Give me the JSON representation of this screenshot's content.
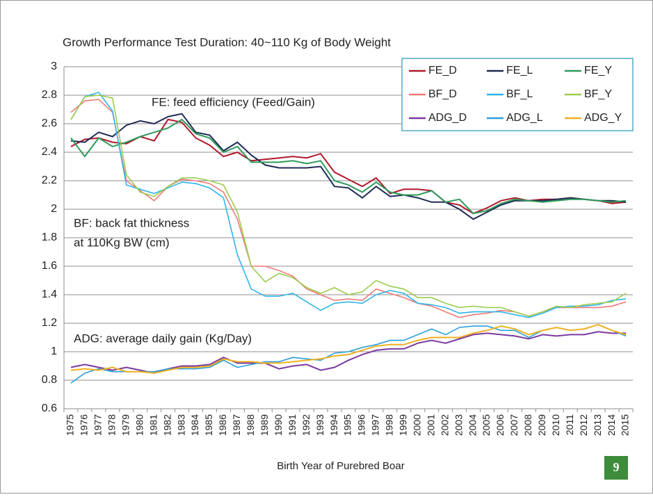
{
  "chart_data": {
    "type": "line",
    "title": "Growth Performance Test Duration: 40~110 Kg of Body Weight",
    "x_label": "Birth Year of Purebred Boar",
    "annotations": [
      "FE: feed efficiency (Feed/Gain)",
      "BF: back fat thickness",
      "at 110Kg BW (cm)",
      "ADG: average daily gain (Kg/Day)"
    ],
    "categories": [
      "1975",
      "1976",
      "1977",
      "1978",
      "1979",
      "1980",
      "1981",
      "1982",
      "1983",
      "1984",
      "1985",
      "1986",
      "1987",
      "1988",
      "1989",
      "1990",
      "1991",
      "1992",
      "1993",
      "1994",
      "1995",
      "1996",
      "1997",
      "1998",
      "1999",
      "2000",
      "2001",
      "2002",
      "2003",
      "2004",
      "2005",
      "2006",
      "2007",
      "2008",
      "2009",
      "2010",
      "2011",
      "2012",
      "2013",
      "2014",
      "2015"
    ],
    "ylim": [
      0.6,
      3
    ],
    "yticks": [
      0.6,
      0.8,
      1,
      1.2,
      1.4,
      1.6,
      1.8,
      2,
      2.2,
      2.4,
      2.6,
      2.8,
      3
    ],
    "grid": true,
    "legend": "upper right",
    "series": [
      {
        "name": "FE_D",
        "color": "#b0182a",
        "values": [
          2.44,
          2.49,
          2.5,
          2.47,
          2.46,
          2.51,
          2.48,
          2.63,
          2.61,
          2.5,
          2.45,
          2.37,
          2.4,
          2.34,
          2.35,
          2.36,
          2.37,
          2.36,
          2.39,
          2.26,
          2.21,
          2.16,
          2.22,
          2.11,
          2.14,
          2.14,
          2.13,
          2.05,
          2.03,
          1.97,
          2.01,
          2.06,
          2.08,
          2.06,
          2.07,
          2.07,
          2.08,
          2.07,
          2.06,
          2.04,
          2.05
        ]
      },
      {
        "name": "FE_L",
        "color": "#1f2a55",
        "values": [
          2.48,
          2.47,
          2.54,
          2.51,
          2.59,
          2.62,
          2.6,
          2.65,
          2.67,
          2.54,
          2.52,
          2.41,
          2.47,
          2.38,
          2.31,
          2.29,
          2.29,
          2.29,
          2.3,
          2.16,
          2.15,
          2.08,
          2.16,
          2.09,
          2.1,
          2.08,
          2.05,
          2.05,
          2.0,
          1.93,
          1.98,
          2.03,
          2.06,
          2.06,
          2.06,
          2.07,
          2.08,
          2.07,
          2.06,
          2.06,
          2.05
        ]
      },
      {
        "name": "FE_Y",
        "color": "#2e9a5a",
        "values": [
          2.5,
          2.37,
          2.5,
          2.44,
          2.47,
          2.51,
          2.54,
          2.57,
          2.63,
          2.53,
          2.5,
          2.4,
          2.44,
          2.33,
          2.33,
          2.33,
          2.34,
          2.32,
          2.34,
          2.2,
          2.17,
          2.12,
          2.19,
          2.12,
          2.1,
          2.1,
          2.13,
          2.05,
          2.07,
          1.97,
          1.99,
          2.04,
          2.07,
          2.06,
          2.05,
          2.06,
          2.07,
          2.07,
          2.06,
          2.05,
          2.06
        ]
      },
      {
        "name": "BF_D",
        "color": "#ee7a78",
        "values": [
          2.68,
          2.76,
          2.77,
          2.68,
          2.2,
          2.13,
          2.06,
          2.16,
          2.21,
          2.2,
          2.18,
          2.12,
          1.93,
          1.6,
          1.6,
          1.57,
          1.53,
          1.44,
          1.4,
          1.36,
          1.37,
          1.36,
          1.44,
          1.41,
          1.38,
          1.34,
          1.32,
          1.28,
          1.24,
          1.26,
          1.27,
          1.29,
          1.28,
          1.25,
          1.28,
          1.31,
          1.31,
          1.31,
          1.31,
          1.32,
          1.35
        ]
      },
      {
        "name": "BF_L",
        "color": "#2fb4ea",
        "values": [
          2.63,
          2.79,
          2.82,
          2.69,
          2.17,
          2.14,
          2.11,
          2.15,
          2.19,
          2.18,
          2.15,
          2.08,
          1.68,
          1.44,
          1.39,
          1.39,
          1.41,
          1.35,
          1.29,
          1.34,
          1.35,
          1.34,
          1.4,
          1.43,
          1.41,
          1.34,
          1.33,
          1.31,
          1.27,
          1.28,
          1.28,
          1.28,
          1.26,
          1.24,
          1.27,
          1.31,
          1.32,
          1.32,
          1.33,
          1.36,
          1.37
        ]
      },
      {
        "name": "BF_Y",
        "color": "#9ccc4e",
        "values": [
          2.63,
          2.79,
          2.8,
          2.78,
          2.24,
          2.12,
          2.09,
          2.16,
          2.22,
          2.22,
          2.2,
          2.17,
          1.98,
          1.6,
          1.49,
          1.55,
          1.52,
          1.45,
          1.41,
          1.45,
          1.4,
          1.42,
          1.5,
          1.46,
          1.44,
          1.38,
          1.38,
          1.34,
          1.31,
          1.32,
          1.31,
          1.31,
          1.28,
          1.25,
          1.28,
          1.32,
          1.31,
          1.33,
          1.34,
          1.35,
          1.41
        ]
      },
      {
        "name": "ADG_D",
        "color": "#7a3aa0",
        "values": [
          0.89,
          0.91,
          0.89,
          0.87,
          0.89,
          0.87,
          0.85,
          0.88,
          0.9,
          0.9,
          0.91,
          0.96,
          0.92,
          0.92,
          0.92,
          0.88,
          0.9,
          0.91,
          0.87,
          0.89,
          0.94,
          0.98,
          1.01,
          1.02,
          1.02,
          1.06,
          1.08,
          1.06,
          1.09,
          1.12,
          1.13,
          1.12,
          1.11,
          1.09,
          1.12,
          1.11,
          1.12,
          1.12,
          1.14,
          1.13,
          1.13
        ]
      },
      {
        "name": "ADG_L",
        "color": "#2a9fd8",
        "values": [
          0.78,
          0.85,
          0.88,
          0.86,
          0.86,
          0.86,
          0.86,
          0.88,
          0.88,
          0.88,
          0.89,
          0.94,
          0.89,
          0.91,
          0.93,
          0.93,
          0.96,
          0.95,
          0.94,
          0.99,
          1.0,
          1.03,
          1.05,
          1.08,
          1.08,
          1.12,
          1.16,
          1.12,
          1.17,
          1.18,
          1.18,
          1.15,
          1.15,
          1.1,
          1.15,
          1.17,
          1.15,
          1.16,
          1.19,
          1.15,
          1.11
        ]
      },
      {
        "name": "ADG_Y",
        "color": "#f0b022",
        "values": [
          0.87,
          0.88,
          0.87,
          0.89,
          0.86,
          0.86,
          0.85,
          0.87,
          0.89,
          0.89,
          0.9,
          0.95,
          0.93,
          0.93,
          0.92,
          0.92,
          0.93,
          0.94,
          0.95,
          0.97,
          0.98,
          1.01,
          1.04,
          1.05,
          1.05,
          1.08,
          1.1,
          1.1,
          1.1,
          1.13,
          1.15,
          1.18,
          1.16,
          1.12,
          1.15,
          1.17,
          1.15,
          1.16,
          1.19,
          1.15,
          1.12
        ]
      }
    ]
  },
  "page_number": "9"
}
